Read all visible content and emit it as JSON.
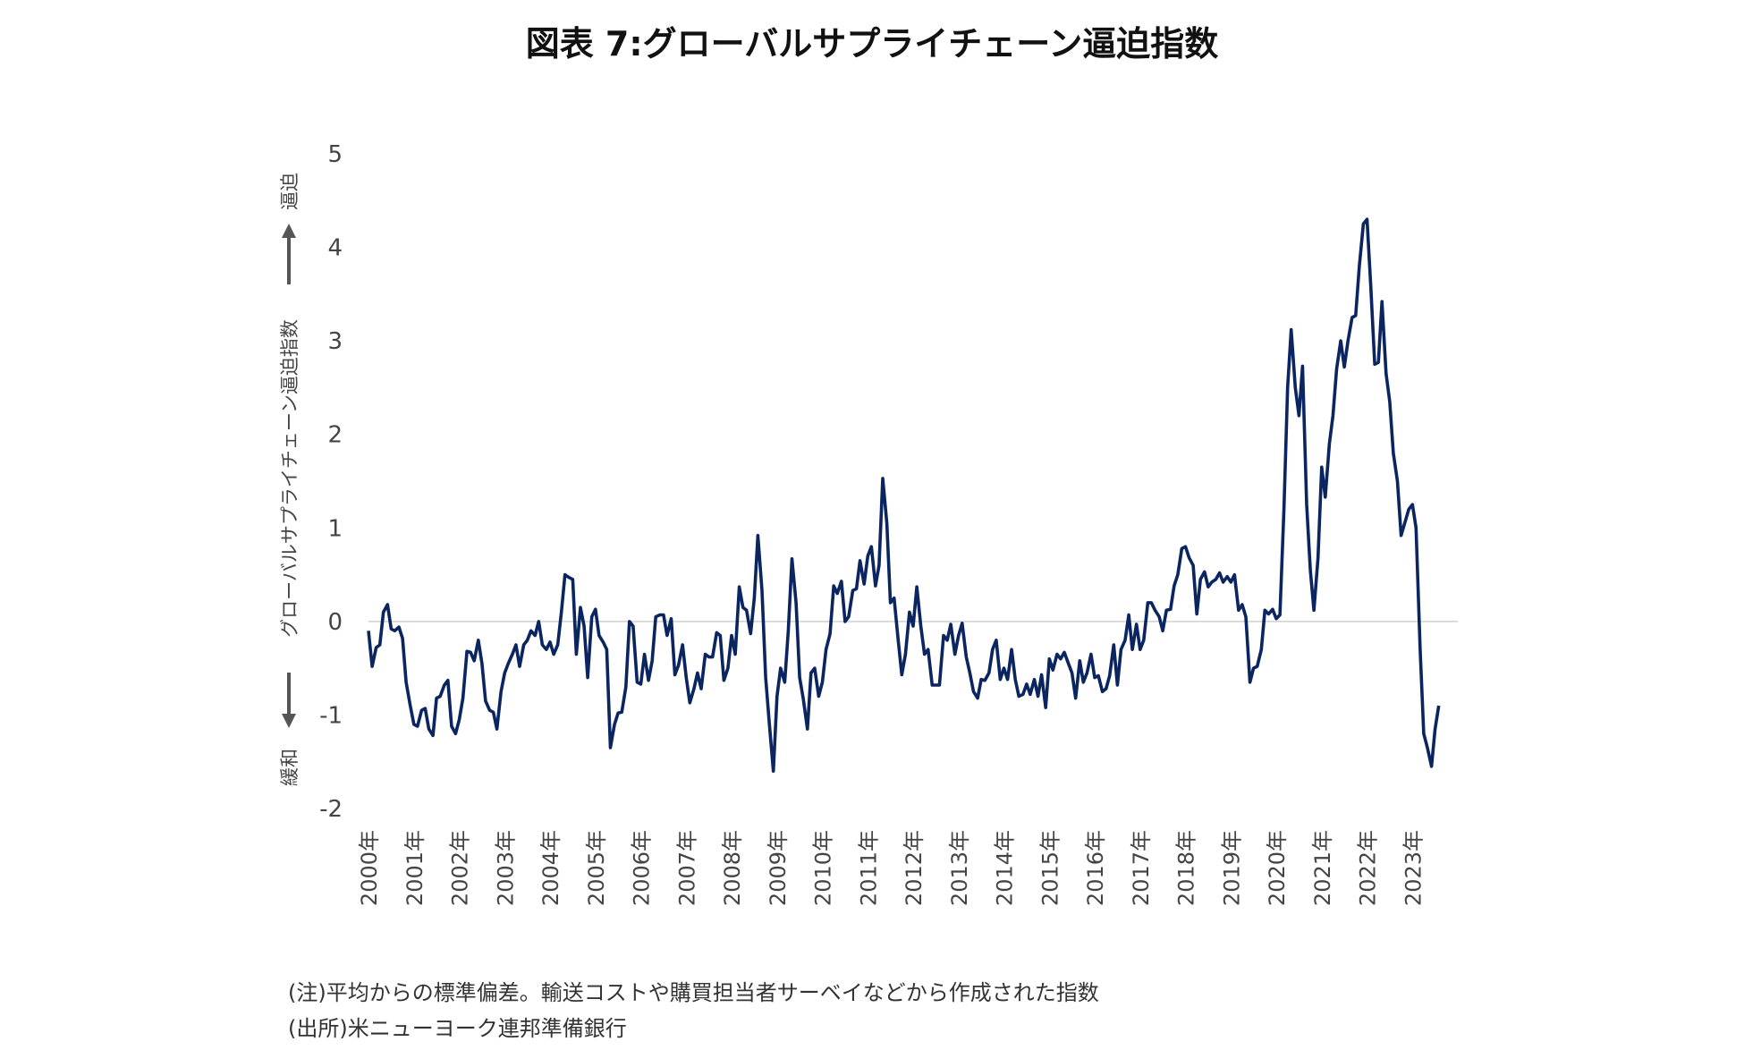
{
  "chart_data": {
    "type": "line",
    "title": "図表 7:グローバルサプライチェーン逼迫指数",
    "ylabel": {
      "main": "グローバルサプライチェーン逼迫指数",
      "up": "逼迫",
      "down": "緩和"
    },
    "ylim": [
      -2,
      5
    ],
    "yticks": [
      "5",
      "4",
      "3",
      "2",
      "1",
      "0",
      "-1",
      "-2"
    ],
    "ytick_values": [
      5,
      4,
      3,
      2,
      1,
      0,
      -1,
      -2
    ],
    "xlim": [
      2000.0,
      2024.0
    ],
    "xticks": [
      "2000年",
      "2001年",
      "2002年",
      "2003年",
      "2004年",
      "2005年",
      "2006年",
      "2007年",
      "2008年",
      "2009年",
      "2010年",
      "2011年",
      "2012年",
      "2013年",
      "2014年",
      "2015年",
      "2016年",
      "2017年",
      "2018年",
      "2019年",
      "2020年",
      "2021年",
      "2022年",
      "2023年"
    ],
    "series": [
      {
        "name": "グローバルサプライチェーン逼迫指数",
        "color": "#0b2560",
        "points": [
          [
            2000.0,
            -0.1
          ],
          [
            2000.08,
            -0.48
          ],
          [
            2000.17,
            -0.28
          ],
          [
            2000.25,
            -0.25
          ],
          [
            2000.33,
            0.1
          ],
          [
            2000.42,
            0.18
          ],
          [
            2000.5,
            -0.08
          ],
          [
            2000.58,
            -0.1
          ],
          [
            2000.67,
            -0.06
          ],
          [
            2000.75,
            -0.18
          ],
          [
            2000.83,
            -0.65
          ],
          [
            2000.92,
            -0.9
          ],
          [
            2001.0,
            -1.1
          ],
          [
            2001.08,
            -1.12
          ],
          [
            2001.17,
            -0.95
          ],
          [
            2001.25,
            -0.93
          ],
          [
            2001.33,
            -1.15
          ],
          [
            2001.42,
            -1.22
          ],
          [
            2001.5,
            -0.82
          ],
          [
            2001.58,
            -0.8
          ],
          [
            2001.67,
            -0.68
          ],
          [
            2001.75,
            -0.63
          ],
          [
            2001.83,
            -1.12
          ],
          [
            2001.92,
            -1.2
          ],
          [
            2002.0,
            -1.05
          ],
          [
            2002.08,
            -0.82
          ],
          [
            2002.17,
            -0.32
          ],
          [
            2002.25,
            -0.33
          ],
          [
            2002.33,
            -0.42
          ],
          [
            2002.42,
            -0.2
          ],
          [
            2002.5,
            -0.45
          ],
          [
            2002.58,
            -0.85
          ],
          [
            2002.67,
            -0.95
          ],
          [
            2002.75,
            -0.97
          ],
          [
            2002.83,
            -1.15
          ],
          [
            2002.92,
            -0.75
          ],
          [
            2003.0,
            -0.55
          ],
          [
            2003.08,
            -0.45
          ],
          [
            2003.17,
            -0.35
          ],
          [
            2003.25,
            -0.25
          ],
          [
            2003.33,
            -0.48
          ],
          [
            2003.42,
            -0.25
          ],
          [
            2003.5,
            -0.2
          ],
          [
            2003.58,
            -0.1
          ],
          [
            2003.67,
            -0.15
          ],
          [
            2003.75,
            0.0
          ],
          [
            2003.83,
            -0.25
          ],
          [
            2003.92,
            -0.3
          ],
          [
            2004.0,
            -0.22
          ],
          [
            2004.08,
            -0.35
          ],
          [
            2004.17,
            -0.25
          ],
          [
            2004.25,
            0.1
          ],
          [
            2004.33,
            0.5
          ],
          [
            2004.42,
            0.47
          ],
          [
            2004.5,
            0.45
          ],
          [
            2004.58,
            -0.35
          ],
          [
            2004.67,
            0.15
          ],
          [
            2004.75,
            -0.05
          ],
          [
            2004.83,
            -0.6
          ],
          [
            2004.92,
            0.05
          ],
          [
            2005.0,
            0.13
          ],
          [
            2005.08,
            -0.15
          ],
          [
            2005.17,
            -0.22
          ],
          [
            2005.25,
            -0.3
          ],
          [
            2005.33,
            -1.35
          ],
          [
            2005.42,
            -1.1
          ],
          [
            2005.5,
            -0.98
          ],
          [
            2005.58,
            -0.97
          ],
          [
            2005.67,
            -0.7
          ],
          [
            2005.75,
            0.0
          ],
          [
            2005.83,
            -0.05
          ],
          [
            2005.92,
            -0.65
          ],
          [
            2006.0,
            -0.67
          ],
          [
            2006.08,
            -0.35
          ],
          [
            2006.17,
            -0.63
          ],
          [
            2006.25,
            -0.42
          ],
          [
            2006.33,
            0.05
          ],
          [
            2006.42,
            0.07
          ],
          [
            2006.5,
            0.07
          ],
          [
            2006.58,
            -0.15
          ],
          [
            2006.67,
            0.03
          ],
          [
            2006.75,
            -0.57
          ],
          [
            2006.83,
            -0.47
          ],
          [
            2006.92,
            -0.25
          ],
          [
            2007.0,
            -0.6
          ],
          [
            2007.08,
            -0.87
          ],
          [
            2007.17,
            -0.72
          ],
          [
            2007.25,
            -0.55
          ],
          [
            2007.33,
            -0.72
          ],
          [
            2007.42,
            -0.35
          ],
          [
            2007.5,
            -0.38
          ],
          [
            2007.58,
            -0.38
          ],
          [
            2007.67,
            -0.12
          ],
          [
            2007.75,
            -0.15
          ],
          [
            2007.83,
            -0.63
          ],
          [
            2007.92,
            -0.5
          ],
          [
            2008.0,
            -0.15
          ],
          [
            2008.08,
            -0.35
          ],
          [
            2008.17,
            0.37
          ],
          [
            2008.25,
            0.15
          ],
          [
            2008.33,
            0.12
          ],
          [
            2008.42,
            -0.13
          ],
          [
            2008.5,
            0.25
          ],
          [
            2008.58,
            0.92
          ],
          [
            2008.67,
            0.33
          ],
          [
            2008.75,
            -0.6
          ],
          [
            2008.83,
            -1.08
          ],
          [
            2008.92,
            -1.6
          ],
          [
            2009.0,
            -0.8
          ],
          [
            2009.08,
            -0.5
          ],
          [
            2009.17,
            -0.65
          ],
          [
            2009.25,
            -0.1
          ],
          [
            2009.33,
            0.67
          ],
          [
            2009.42,
            0.2
          ],
          [
            2009.5,
            -0.6
          ],
          [
            2009.58,
            -0.83
          ],
          [
            2009.67,
            -1.15
          ],
          [
            2009.75,
            -0.55
          ],
          [
            2009.83,
            -0.5
          ],
          [
            2009.92,
            -0.8
          ],
          [
            2010.0,
            -0.65
          ],
          [
            2010.08,
            -0.3
          ],
          [
            2010.17,
            -0.13
          ],
          [
            2010.25,
            0.38
          ],
          [
            2010.33,
            0.3
          ],
          [
            2010.42,
            0.43
          ],
          [
            2010.5,
            0.0
          ],
          [
            2010.58,
            0.05
          ],
          [
            2010.67,
            0.33
          ],
          [
            2010.75,
            0.35
          ],
          [
            2010.83,
            0.65
          ],
          [
            2010.92,
            0.4
          ],
          [
            2011.0,
            0.7
          ],
          [
            2011.08,
            0.8
          ],
          [
            2011.17,
            0.38
          ],
          [
            2011.25,
            0.6
          ],
          [
            2011.33,
            1.53
          ],
          [
            2011.42,
            1.05
          ],
          [
            2011.5,
            0.2
          ],
          [
            2011.58,
            0.25
          ],
          [
            2011.67,
            -0.2
          ],
          [
            2011.75,
            -0.57
          ],
          [
            2011.83,
            -0.35
          ],
          [
            2011.92,
            0.1
          ],
          [
            2012.0,
            -0.05
          ],
          [
            2012.08,
            0.37
          ],
          [
            2012.17,
            -0.05
          ],
          [
            2012.25,
            -0.35
          ],
          [
            2012.33,
            -0.3
          ],
          [
            2012.42,
            -0.68
          ],
          [
            2012.5,
            -0.68
          ],
          [
            2012.58,
            -0.68
          ],
          [
            2012.67,
            -0.15
          ],
          [
            2012.75,
            -0.2
          ],
          [
            2012.83,
            -0.03
          ],
          [
            2012.92,
            -0.35
          ],
          [
            2013.0,
            -0.15
          ],
          [
            2013.08,
            -0.02
          ],
          [
            2013.17,
            -0.38
          ],
          [
            2013.25,
            -0.55
          ],
          [
            2013.33,
            -0.75
          ],
          [
            2013.42,
            -0.82
          ],
          [
            2013.5,
            -0.62
          ],
          [
            2013.58,
            -0.63
          ],
          [
            2013.67,
            -0.55
          ],
          [
            2013.75,
            -0.3
          ],
          [
            2013.83,
            -0.2
          ],
          [
            2013.92,
            -0.62
          ],
          [
            2014.0,
            -0.5
          ],
          [
            2014.08,
            -0.62
          ],
          [
            2014.17,
            -0.3
          ],
          [
            2014.25,
            -0.62
          ],
          [
            2014.33,
            -0.8
          ],
          [
            2014.42,
            -0.78
          ],
          [
            2014.5,
            -0.67
          ],
          [
            2014.58,
            -0.78
          ],
          [
            2014.67,
            -0.62
          ],
          [
            2014.75,
            -0.8
          ],
          [
            2014.83,
            -0.57
          ],
          [
            2014.92,
            -0.92
          ],
          [
            2015.0,
            -0.4
          ],
          [
            2015.08,
            -0.52
          ],
          [
            2015.17,
            -0.35
          ],
          [
            2015.25,
            -0.4
          ],
          [
            2015.33,
            -0.33
          ],
          [
            2015.42,
            -0.45
          ],
          [
            2015.5,
            -0.55
          ],
          [
            2015.58,
            -0.82
          ],
          [
            2015.67,
            -0.42
          ],
          [
            2015.75,
            -0.65
          ],
          [
            2015.83,
            -0.55
          ],
          [
            2015.92,
            -0.35
          ],
          [
            2016.0,
            -0.6
          ],
          [
            2016.08,
            -0.58
          ],
          [
            2016.17,
            -0.75
          ],
          [
            2016.25,
            -0.72
          ],
          [
            2016.33,
            -0.58
          ],
          [
            2016.42,
            -0.25
          ],
          [
            2016.5,
            -0.68
          ],
          [
            2016.58,
            -0.3
          ],
          [
            2016.67,
            -0.2
          ],
          [
            2016.75,
            0.07
          ],
          [
            2016.83,
            -0.3
          ],
          [
            2016.92,
            -0.03
          ],
          [
            2017.0,
            -0.3
          ],
          [
            2017.08,
            -0.2
          ],
          [
            2017.17,
            0.2
          ],
          [
            2017.25,
            0.2
          ],
          [
            2017.33,
            0.12
          ],
          [
            2017.42,
            0.05
          ],
          [
            2017.5,
            -0.1
          ],
          [
            2017.58,
            0.12
          ],
          [
            2017.67,
            0.13
          ],
          [
            2017.75,
            0.38
          ],
          [
            2017.83,
            0.5
          ],
          [
            2017.92,
            0.78
          ],
          [
            2018.0,
            0.8
          ],
          [
            2018.08,
            0.68
          ],
          [
            2018.17,
            0.6
          ],
          [
            2018.25,
            0.08
          ],
          [
            2018.33,
            0.45
          ],
          [
            2018.42,
            0.53
          ],
          [
            2018.5,
            0.37
          ],
          [
            2018.58,
            0.42
          ],
          [
            2018.67,
            0.45
          ],
          [
            2018.75,
            0.52
          ],
          [
            2018.83,
            0.42
          ],
          [
            2018.92,
            0.48
          ],
          [
            2019.0,
            0.42
          ],
          [
            2019.08,
            0.5
          ],
          [
            2019.17,
            0.12
          ],
          [
            2019.25,
            0.18
          ],
          [
            2019.33,
            0.05
          ],
          [
            2019.42,
            -0.65
          ],
          [
            2019.5,
            -0.5
          ],
          [
            2019.58,
            -0.48
          ],
          [
            2019.67,
            -0.3
          ],
          [
            2019.75,
            0.12
          ],
          [
            2019.83,
            0.08
          ],
          [
            2019.92,
            0.13
          ],
          [
            2020.0,
            0.03
          ],
          [
            2020.08,
            0.07
          ],
          [
            2020.17,
            1.2
          ],
          [
            2020.25,
            2.5
          ],
          [
            2020.33,
            3.12
          ],
          [
            2020.42,
            2.5
          ],
          [
            2020.5,
            2.2
          ],
          [
            2020.58,
            2.73
          ],
          [
            2020.67,
            1.25
          ],
          [
            2020.75,
            0.55
          ],
          [
            2020.83,
            0.12
          ],
          [
            2020.92,
            0.68
          ],
          [
            2021.0,
            1.65
          ],
          [
            2021.08,
            1.33
          ],
          [
            2021.17,
            1.9
          ],
          [
            2021.25,
            2.2
          ],
          [
            2021.33,
            2.7
          ],
          [
            2021.42,
            3.0
          ],
          [
            2021.5,
            2.72
          ],
          [
            2021.58,
            3.0
          ],
          [
            2021.67,
            3.25
          ],
          [
            2021.75,
            3.27
          ],
          [
            2021.83,
            3.8
          ],
          [
            2021.92,
            4.25
          ],
          [
            2022.0,
            4.3
          ],
          [
            2022.08,
            3.6
          ],
          [
            2022.17,
            2.75
          ],
          [
            2022.25,
            2.77
          ],
          [
            2022.33,
            3.42
          ],
          [
            2022.42,
            2.65
          ],
          [
            2022.5,
            2.35
          ],
          [
            2022.58,
            1.8
          ],
          [
            2022.67,
            1.5
          ],
          [
            2022.75,
            0.92
          ],
          [
            2022.83,
            1.05
          ],
          [
            2022.92,
            1.2
          ],
          [
            2023.0,
            1.25
          ],
          [
            2023.08,
            1.0
          ],
          [
            2023.17,
            -0.3
          ],
          [
            2023.25,
            -1.2
          ],
          [
            2023.33,
            -1.35
          ],
          [
            2023.42,
            -1.55
          ],
          [
            2023.5,
            -1.15
          ],
          [
            2023.58,
            -0.9
          ]
        ]
      }
    ]
  },
  "notes": [
    "(注)平均からの標準偏差。輸送コストや購買担当者サーベイなどから作成された指数",
    "(出所)米ニューヨーク連邦準備銀行"
  ]
}
